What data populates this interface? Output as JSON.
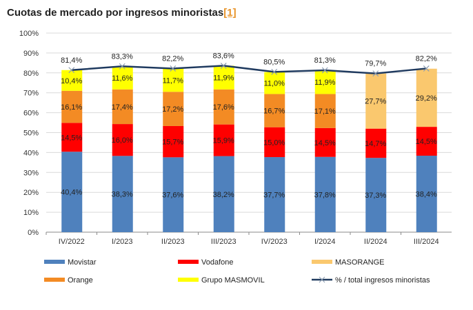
{
  "chart_data": {
    "type": "bar",
    "stacked": true,
    "title": "Cuotas de mercado por ingresos minoristas",
    "title_ref": "[1]",
    "categories": [
      "IV/2022",
      "I/2023",
      "II/2023",
      "III/2023",
      "IV/2023",
      "I/2024",
      "II/2024",
      "III/2024"
    ],
    "ylim": [
      0,
      100
    ],
    "yticks": [
      "0%",
      "10%",
      "20%",
      "30%",
      "40%",
      "50%",
      "60%",
      "70%",
      "80%",
      "90%",
      "100%"
    ],
    "grid": true,
    "legend_position": "bottom",
    "series": [
      {
        "name": "Movistar",
        "color": "#4f81bd",
        "values": [
          40.4,
          38.3,
          37.6,
          38.2,
          37.7,
          37.8,
          37.3,
          38.4
        ],
        "labels": [
          "40,4%",
          "38,3%",
          "37,6%",
          "38,2%",
          "37,7%",
          "37,8%",
          "37,3%",
          "38,4%"
        ]
      },
      {
        "name": "Vodafone",
        "color": "#ff0000",
        "values": [
          14.5,
          16.0,
          15.7,
          15.9,
          15.0,
          14.5,
          14.7,
          14.5
        ],
        "labels": [
          "14,5%",
          "16,0%",
          "15,7%",
          "15,9%",
          "15,0%",
          "14,5%",
          "14,7%",
          "14,5%"
        ]
      },
      {
        "name": "Orange",
        "color": "#f38b24",
        "values": [
          16.1,
          17.4,
          17.2,
          17.6,
          16.7,
          17.1,
          null,
          null
        ],
        "labels": [
          "16,1%",
          "17,4%",
          "17,2%",
          "17,6%",
          "16,7%",
          "17,1%",
          null,
          null
        ]
      },
      {
        "name": "Grupo MASMOVIL",
        "color": "#ffff00",
        "values": [
          10.4,
          11.6,
          11.7,
          11.9,
          11.0,
          11.9,
          null,
          null
        ],
        "labels": [
          "10,4%",
          "11,6%",
          "11,7%",
          "11,9%",
          "11,0%",
          "11,9%",
          null,
          null
        ]
      },
      {
        "name": "MASORANGE",
        "color": "#fac86e",
        "values": [
          null,
          null,
          null,
          null,
          null,
          null,
          27.7,
          29.2
        ],
        "labels": [
          null,
          null,
          null,
          null,
          null,
          null,
          "27,7%",
          "29,2%"
        ]
      }
    ],
    "line": {
      "name": "% / total ingresos minoristas",
      "color": "#1f3a5f",
      "values": [
        81.4,
        83.3,
        82.2,
        83.6,
        80.5,
        81.3,
        79.7,
        82.2
      ],
      "labels": [
        "81,4%",
        "83,3%",
        "82,2%",
        "83,6%",
        "80,5%",
        "81,3%",
        "79,7%",
        "82,2%"
      ]
    },
    "legend_order": [
      "Movistar",
      "Vodafone",
      "MASORANGE",
      "Orange",
      "Grupo MASMOVIL",
      "% / total ingresos minoristas"
    ]
  }
}
